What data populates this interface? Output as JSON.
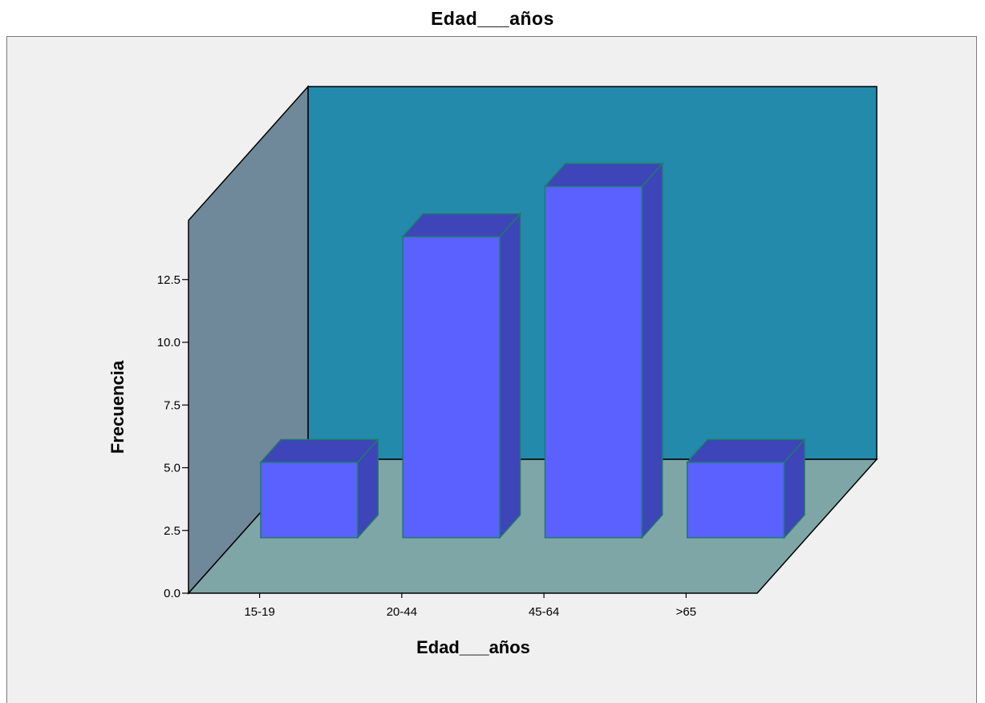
{
  "chart_data": {
    "type": "bar",
    "title": "Edad___años",
    "xlabel": "Edad___años",
    "ylabel": "Frecuencia",
    "categories": [
      "15-19",
      "20-44",
      "45-64",
      ">65"
    ],
    "values": [
      3,
      12,
      14,
      3
    ],
    "yticks": [
      "0.0",
      "2.5",
      "5.0",
      "7.5",
      "10.0",
      "12.5"
    ],
    "ytick_values": [
      0,
      2.5,
      5,
      7.5,
      10,
      12.5
    ],
    "ylim": [
      0,
      15
    ],
    "grid": false,
    "legend": "none",
    "three_d": true
  },
  "colors": {
    "bar_front": "#5a61ff",
    "bar_top": "#3d45b8",
    "bar_side": "#3d45b8",
    "bar_edge": "#1f7a6a",
    "back_wall": "#238aab",
    "left_wall": "#70899a",
    "floor": "#7fa6a6",
    "background": "#f0f0f0"
  }
}
